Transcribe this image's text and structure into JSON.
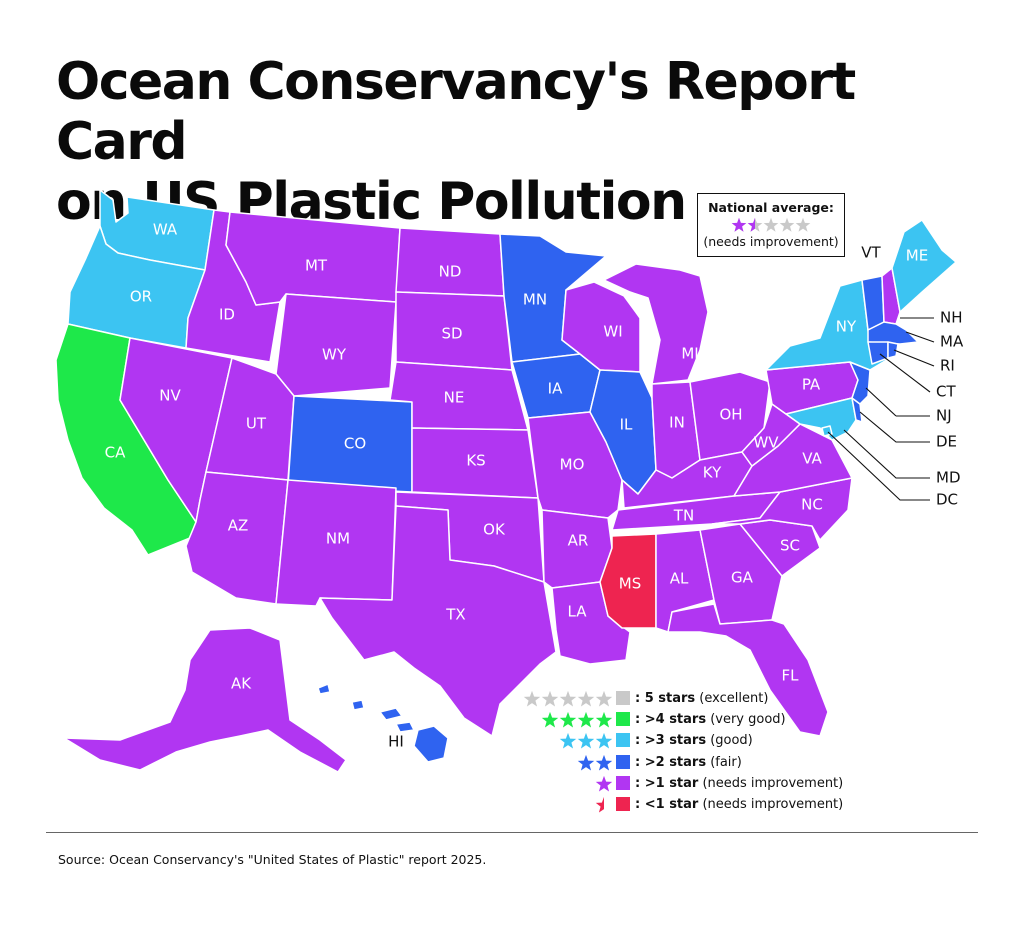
{
  "title": {
    "line1": "Ocean Conservancy's Report Card",
    "line2": "on US Plastic Pollution"
  },
  "colors": {
    "excellent": "#c9c9c9",
    "very_good": "#1ee84a",
    "good": "#3cc4f2",
    "fair": "#2f63f0",
    "needs_improvement": "#b136f2",
    "poor": "#ee2450",
    "border": "#ffffff"
  },
  "national_average": {
    "title": "National average:",
    "stars": 1.5,
    "subtitle": "(needs improvement)"
  },
  "legend": [
    {
      "stars": 5,
      "color": "#c9c9c9",
      "bold": ": 5 stars",
      "rest": " (excellent)"
    },
    {
      "stars": 4,
      "color": "#1ee84a",
      "bold": ": >4 stars",
      "rest": " (very good)"
    },
    {
      "stars": 3,
      "color": "#3cc4f2",
      "bold": ": >3 stars",
      "rest": " (good)"
    },
    {
      "stars": 2,
      "color": "#2f63f0",
      "bold": ": >2 stars",
      "rest": " (fair)"
    },
    {
      "stars": 1,
      "color": "#b136f2",
      "bold": ": >1 star",
      "rest": " (needs improvement)"
    },
    {
      "stars": 0.5,
      "color": "#ee2450",
      "bold": ": <1 star",
      "rest": " (needs improvement)"
    }
  ],
  "states": {
    "WA": {
      "label": "WA",
      "rating": "good"
    },
    "OR": {
      "label": "OR",
      "rating": "good"
    },
    "CA": {
      "label": "CA",
      "rating": "very_good"
    },
    "ID": {
      "label": "ID",
      "rating": "needs_improvement"
    },
    "NV": {
      "label": "NV",
      "rating": "needs_improvement"
    },
    "MT": {
      "label": "MT",
      "rating": "needs_improvement"
    },
    "WY": {
      "label": "WY",
      "rating": "needs_improvement"
    },
    "UT": {
      "label": "UT",
      "rating": "needs_improvement"
    },
    "AZ": {
      "label": "AZ",
      "rating": "needs_improvement"
    },
    "CO": {
      "label": "CO",
      "rating": "fair"
    },
    "NM": {
      "label": "NM",
      "rating": "needs_improvement"
    },
    "ND": {
      "label": "ND",
      "rating": "needs_improvement"
    },
    "SD": {
      "label": "SD",
      "rating": "needs_improvement"
    },
    "NE": {
      "label": "NE",
      "rating": "needs_improvement"
    },
    "KS": {
      "label": "KS",
      "rating": "needs_improvement"
    },
    "OK": {
      "label": "OK",
      "rating": "needs_improvement"
    },
    "TX": {
      "label": "TX",
      "rating": "needs_improvement"
    },
    "MN": {
      "label": "MN",
      "rating": "fair"
    },
    "IA": {
      "label": "IA",
      "rating": "fair"
    },
    "MO": {
      "label": "MO",
      "rating": "needs_improvement"
    },
    "AR": {
      "label": "AR",
      "rating": "needs_improvement"
    },
    "LA": {
      "label": "LA",
      "rating": "needs_improvement"
    },
    "WI": {
      "label": "WI",
      "rating": "needs_improvement"
    },
    "IL": {
      "label": "IL",
      "rating": "fair"
    },
    "MI": {
      "label": "MI",
      "rating": "needs_improvement"
    },
    "IN": {
      "label": "IN",
      "rating": "needs_improvement"
    },
    "OH": {
      "label": "OH",
      "rating": "needs_improvement"
    },
    "KY": {
      "label": "KY",
      "rating": "needs_improvement"
    },
    "TN": {
      "label": "TN",
      "rating": "needs_improvement"
    },
    "MS": {
      "label": "MS",
      "rating": "poor"
    },
    "AL": {
      "label": "AL",
      "rating": "needs_improvement"
    },
    "GA": {
      "label": "GA",
      "rating": "needs_improvement"
    },
    "FL": {
      "label": "FL",
      "rating": "needs_improvement"
    },
    "SC": {
      "label": "SC",
      "rating": "needs_improvement"
    },
    "NC": {
      "label": "NC",
      "rating": "needs_improvement"
    },
    "VA": {
      "label": "VA",
      "rating": "needs_improvement"
    },
    "WV": {
      "label": "WV",
      "rating": "needs_improvement"
    },
    "PA": {
      "label": "PA",
      "rating": "needs_improvement"
    },
    "NY": {
      "label": "NY",
      "rating": "good"
    },
    "VT": {
      "label": "VT",
      "rating": "fair"
    },
    "ME": {
      "label": "ME",
      "rating": "good"
    },
    "NH": {
      "label": "NH",
      "rating": "needs_improvement"
    },
    "MA": {
      "label": "MA",
      "rating": "fair"
    },
    "RI": {
      "label": "RI",
      "rating": "fair"
    },
    "CT": {
      "label": "CT",
      "rating": "fair"
    },
    "NJ": {
      "label": "NJ",
      "rating": "fair"
    },
    "DE": {
      "label": "DE",
      "rating": "fair"
    },
    "MD": {
      "label": "MD",
      "rating": "good"
    },
    "DC": {
      "label": "DC",
      "rating": "good"
    },
    "AK": {
      "label": "AK",
      "rating": "needs_improvement"
    },
    "HI": {
      "label": "HI",
      "rating": "fair"
    }
  },
  "source": "Source: Ocean Conservancy's \"United States of Plastic\" report 2025."
}
